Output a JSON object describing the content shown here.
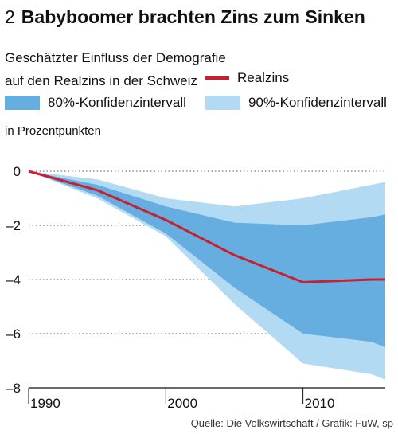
{
  "header": {
    "number": "2",
    "title": "Babyboomer brachten Zins zum Sinken",
    "subtitle": "Geschätzter Einfluss der Demografie auf den Realzins in der Schweiz",
    "unit": "in Prozentpunkten"
  },
  "legend": {
    "line": "Realzins",
    "band80": "80%-Konfidenzintervall",
    "band90": "90%-Konfidenzintervall"
  },
  "source": "Quelle: Die Volkswirtschaft / Grafik: FuW, sp",
  "colors": {
    "line": "#c8202e",
    "band80": "#66aee0",
    "band90": "#b3daf3"
  },
  "chart_data": {
    "type": "area",
    "x": [
      1990,
      1995,
      2000,
      2005,
      2010,
      2015,
      2016
    ],
    "series": [
      {
        "name": "Realzins",
        "values": [
          0,
          -0.7,
          -1.8,
          -3.1,
          -4.1,
          -4.0,
          -4.0
        ]
      },
      {
        "name": "80%-Konfidenzintervall",
        "lower": [
          0,
          -0.9,
          -2.3,
          -4.3,
          -6.0,
          -6.3,
          -6.5
        ],
        "upper": [
          0,
          -0.5,
          -1.3,
          -1.9,
          -2.0,
          -1.7,
          -1.6
        ]
      },
      {
        "name": "90%-Konfidenzintervall",
        "lower": [
          0,
          -1.0,
          -2.4,
          -4.9,
          -7.1,
          -7.5,
          -7.7
        ],
        "upper": [
          0,
          -0.3,
          -1.0,
          -1.3,
          -1.0,
          -0.5,
          -0.4
        ]
      }
    ],
    "xticks": [
      1990,
      2000,
      2010
    ],
    "yticks": [
      0,
      -2,
      -4,
      -6,
      -8
    ],
    "ytick_labels": [
      "0",
      "–2",
      "–4",
      "–6",
      "–8"
    ],
    "xlim": [
      1990,
      2016
    ],
    "ylim": [
      -8,
      0
    ],
    "grid": "horizontal-dotted",
    "legend_position": "top"
  }
}
